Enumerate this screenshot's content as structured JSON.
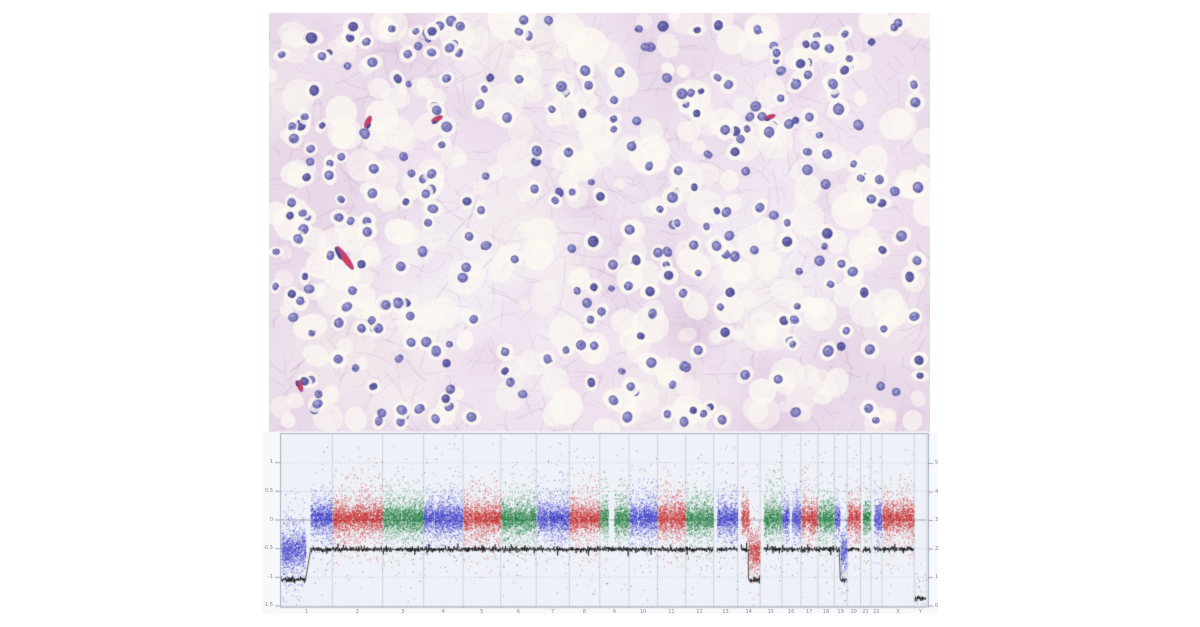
{
  "figure": {
    "histology_panel": {
      "palette": {
        "background": "#e8d8e8",
        "stroma_fiber": "#bf9cc2",
        "halo_white": "#fbf8f0",
        "nucleus_main": "#7b79ba",
        "nucleus_light": "#a9a6d8",
        "nucleus_dark": "#504e96",
        "capillary": "#c2457b",
        "rbc": "#d93b55"
      }
    },
    "cnv_panel": {
      "panel_bg": "#f6f8fb",
      "plot_bg": "#eef1f7",
      "grid_color": "#c2c8d2",
      "zero_line_color": "#9aa3b2",
      "dotted_line_color": "#a8b0bc",
      "segment_line_color": "#111111",
      "label_color": "#81868f"
    }
  },
  "chart_data": {
    "type": "scatter",
    "title": "",
    "description": "Genome-wide copy-number profile: log2 ratio dots per chromosome with segmented copy-number line; losses of 1p, distal 14q and 19q; Y nearly absent",
    "left_axis_ticks": [
      "1",
      "0.5",
      "0",
      "-0.5",
      "-1",
      "-1.5"
    ],
    "left_axis_values": [
      1,
      0.5,
      0,
      -0.5,
      -1,
      -1.5
    ],
    "right_axis_ticks": [
      "5",
      "4",
      "3",
      "2",
      "1",
      "0"
    ],
    "right_axis_values": [
      5,
      4,
      3,
      2,
      1,
      0
    ],
    "x_categories": [
      "1",
      "2",
      "3",
      "4",
      "5",
      "6",
      "7",
      "8",
      "9",
      "10",
      "11",
      "12",
      "13",
      "14",
      "15",
      "16",
      "17",
      "18",
      "19",
      "20",
      "21",
      "22",
      "X",
      "Y"
    ],
    "ylim": [
      -1.5,
      1.5
    ],
    "grid": true,
    "dot_colors": {
      "blue": "#3a3ac8",
      "red": "#c62a2a",
      "green": "#1f7d3c"
    },
    "normal_log2": 0.03,
    "normal_line_log2": -0.52,
    "loss_log2": -0.55,
    "loss_line_log2": -1.05,
    "chromosomes": [
      {
        "name": "1",
        "mb": 249,
        "color": "blue",
        "gaps": [
          [
            120,
            144
          ]
        ],
        "segments": [
          {
            "start": 0,
            "end": 120,
            "log2": -0.55,
            "line": -1.05,
            "cn": 1
          },
          {
            "start": 144,
            "end": 249,
            "log2": 0.03,
            "line": -0.52,
            "cn": 2
          }
        ]
      },
      {
        "name": "2",
        "mb": 243,
        "color": "red",
        "gaps": [
          [
            91,
            95
          ]
        ],
        "segments": [
          {
            "start": 0,
            "end": 243,
            "log2": 0.03,
            "line": -0.52,
            "cn": 2
          }
        ]
      },
      {
        "name": "3",
        "mb": 198,
        "color": "green",
        "gaps": [
          [
            89,
            93
          ]
        ],
        "segments": [
          {
            "start": 0,
            "end": 198,
            "log2": 0.03,
            "line": -0.52,
            "cn": 2
          }
        ]
      },
      {
        "name": "4",
        "mb": 191,
        "color": "blue",
        "gaps": [
          [
            48,
            52
          ]
        ],
        "segments": [
          {
            "start": 0,
            "end": 191,
            "log2": 0.03,
            "line": -0.52,
            "cn": 2
          }
        ]
      },
      {
        "name": "5",
        "mb": 181,
        "color": "red",
        "gaps": [
          [
            46,
            50
          ]
        ],
        "segments": [
          {
            "start": 0,
            "end": 181,
            "log2": 0.03,
            "line": -0.52,
            "cn": 2
          }
        ]
      },
      {
        "name": "6",
        "mb": 171,
        "color": "green",
        "gaps": [
          [
            59,
            63
          ]
        ],
        "segments": [
          {
            "start": 0,
            "end": 171,
            "log2": 0.03,
            "line": -0.52,
            "cn": 2
          }
        ]
      },
      {
        "name": "7",
        "mb": 159,
        "color": "blue",
        "gaps": [
          [
            58,
            62
          ]
        ],
        "segments": [
          {
            "start": 0,
            "end": 159,
            "log2": 0.03,
            "line": -0.52,
            "cn": 2
          }
        ]
      },
      {
        "name": "8",
        "mb": 146,
        "color": "red",
        "gaps": [
          [
            43,
            47
          ]
        ],
        "segments": [
          {
            "start": 0,
            "end": 146,
            "log2": 0.03,
            "line": -0.52,
            "cn": 2
          }
        ]
      },
      {
        "name": "9",
        "mb": 141,
        "color": "green",
        "gaps": [
          [
            40,
            70
          ]
        ],
        "segments": [
          {
            "start": 0,
            "end": 141,
            "log2": 0.03,
            "line": -0.52,
            "cn": 2
          }
        ]
      },
      {
        "name": "10",
        "mb": 136,
        "color": "blue",
        "gaps": [
          [
            38,
            42
          ]
        ],
        "segments": [
          {
            "start": 0,
            "end": 136,
            "log2": 0.03,
            "line": -0.52,
            "cn": 2
          }
        ]
      },
      {
        "name": "11",
        "mb": 135,
        "color": "red",
        "gaps": [
          [
            51,
            55
          ]
        ],
        "segments": [
          {
            "start": 0,
            "end": 135,
            "log2": 0.03,
            "line": -0.52,
            "cn": 2
          }
        ]
      },
      {
        "name": "12",
        "mb": 134,
        "color": "green",
        "gaps": [
          [
            34,
            38
          ]
        ],
        "segments": [
          {
            "start": 0,
            "end": 134,
            "log2": 0.03,
            "line": -0.52,
            "cn": 2
          }
        ]
      },
      {
        "name": "13",
        "mb": 115,
        "color": "blue",
        "gaps": [
          [
            0,
            16
          ]
        ],
        "segments": [
          {
            "start": 16,
            "end": 115,
            "log2": 0.03,
            "line": -0.52,
            "cn": 2
          }
        ]
      },
      {
        "name": "14",
        "mb": 107,
        "color": "red",
        "gaps": [
          [
            0,
            16
          ]
        ],
        "segments": [
          {
            "start": 16,
            "end": 52,
            "log2": 0.03,
            "line": -0.52,
            "cn": 2
          },
          {
            "start": 52,
            "end": 107,
            "log2": -0.55,
            "line": -1.05,
            "cn": 1
          }
        ]
      },
      {
        "name": "15",
        "mb": 103,
        "color": "green",
        "gaps": [
          [
            0,
            17
          ]
        ],
        "segments": [
          {
            "start": 17,
            "end": 103,
            "log2": 0.03,
            "line": -0.52,
            "cn": 2
          }
        ]
      },
      {
        "name": "16",
        "mb": 90,
        "color": "blue",
        "gaps": [
          [
            35,
            47
          ]
        ],
        "segments": [
          {
            "start": 0,
            "end": 90,
            "log2": 0.03,
            "line": -0.52,
            "cn": 2
          }
        ]
      },
      {
        "name": "17",
        "mb": 81,
        "color": "red",
        "gaps": [
          [
            23,
            26
          ]
        ],
        "segments": [
          {
            "start": 0,
            "end": 81,
            "log2": 0.03,
            "line": -0.52,
            "cn": 2
          }
        ]
      },
      {
        "name": "18",
        "mb": 78,
        "color": "green",
        "gaps": [
          [
            16,
            19
          ]
        ],
        "segments": [
          {
            "start": 0,
            "end": 78,
            "log2": 0.03,
            "line": -0.52,
            "cn": 2
          }
        ]
      },
      {
        "name": "19",
        "mb": 59,
        "color": "blue",
        "gaps": [
          [
            24,
            28
          ]
        ],
        "segments": [
          {
            "start": 0,
            "end": 24,
            "log2": 0.03,
            "line": -0.52,
            "cn": 2
          },
          {
            "start": 28,
            "end": 59,
            "log2": -0.55,
            "line": -1.05,
            "cn": 1
          }
        ]
      },
      {
        "name": "20",
        "mb": 63,
        "color": "red",
        "gaps": [
          [
            27,
            30
          ]
        ],
        "segments": [
          {
            "start": 0,
            "end": 63,
            "log2": 0.03,
            "line": -0.52,
            "cn": 2
          }
        ]
      },
      {
        "name": "21",
        "mb": 48,
        "color": "green",
        "gaps": [
          [
            0,
            11
          ]
        ],
        "segments": [
          {
            "start": 11,
            "end": 48,
            "log2": 0.03,
            "line": -0.52,
            "cn": 2
          }
        ]
      },
      {
        "name": "22",
        "mb": 51,
        "color": "blue",
        "gaps": [
          [
            0,
            14
          ]
        ],
        "segments": [
          {
            "start": 14,
            "end": 51,
            "log2": 0.03,
            "line": -0.52,
            "cn": 2
          }
        ]
      },
      {
        "name": "X",
        "mb": 155,
        "color": "red",
        "gaps": [
          [
            59,
            63
          ]
        ],
        "segments": [
          {
            "start": 0,
            "end": 155,
            "log2": 0.03,
            "line": -0.52,
            "cn": 2
          }
        ]
      },
      {
        "name": "Y",
        "mb": 59,
        "color": "green",
        "density": 0.05,
        "gaps": [],
        "segments": [
          {
            "start": 3,
            "end": 56,
            "log2": -1.2,
            "line": -1.38,
            "cn": 0,
            "sparse": true
          }
        ]
      }
    ]
  }
}
